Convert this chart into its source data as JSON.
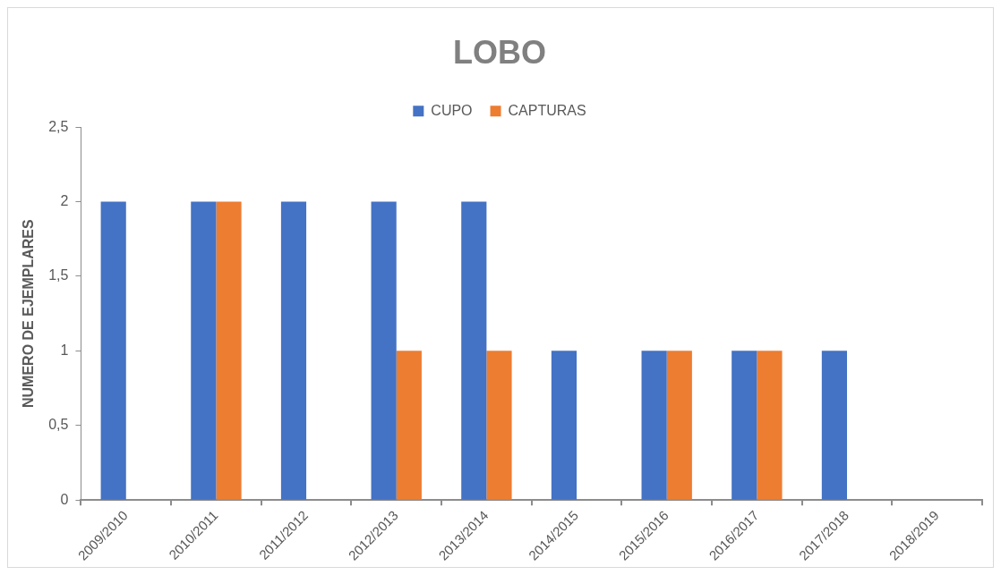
{
  "chart_data": {
    "type": "bar",
    "title": "LOBO",
    "ylabel": "NUMERO DE EJEMPLARES",
    "categories": [
      "2009/2010",
      "2010/2011",
      "2011/2012",
      "2012/2013",
      "2013/2014",
      "2014/2015",
      "2015/2016",
      "2016/2017",
      "2017/2018",
      "2018/2019"
    ],
    "series": [
      {
        "name": "CUPO",
        "color": "#4472c4",
        "values": [
          2,
          2,
          2,
          2,
          2,
          1,
          1,
          1,
          1,
          0
        ]
      },
      {
        "name": "CAPTURAS",
        "color": "#ed7d31",
        "values": [
          0,
          2,
          0,
          1,
          1,
          0,
          1,
          1,
          0,
          0
        ]
      }
    ],
    "ylim": [
      0,
      2.5
    ],
    "yticks": [
      0,
      {
        "value": 0.5,
        "label": "0,5"
      },
      1,
      {
        "value": 1.5,
        "label": "1,5"
      },
      2,
      {
        "value": 2.5,
        "label": "2,5"
      }
    ],
    "grid": false,
    "legend": "top"
  }
}
